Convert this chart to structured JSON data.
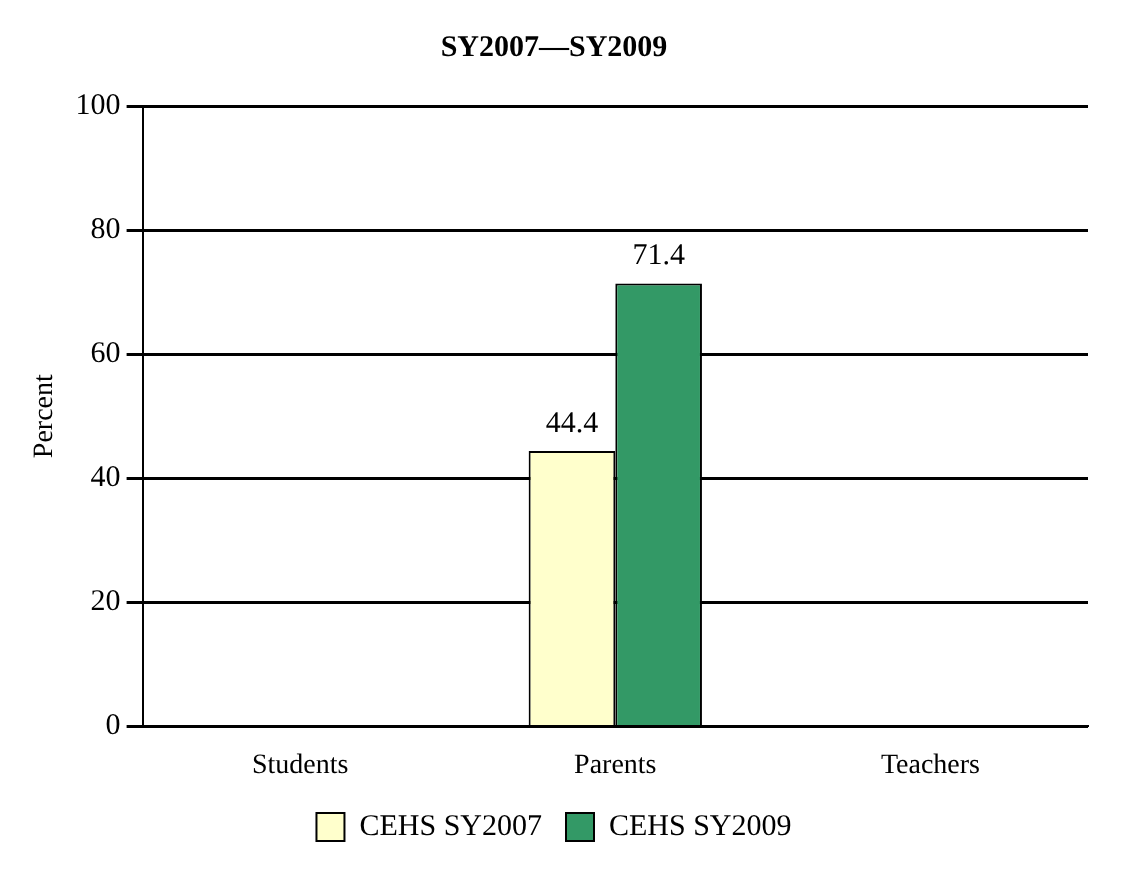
{
  "chart_data": {
    "type": "bar",
    "title": "SY2007—SY2009",
    "ylabel": "Percent",
    "categories": [
      "Students",
      "Parents",
      "Teachers"
    ],
    "series": [
      {
        "name": "CEHS SY2007",
        "color": "#ffffcc",
        "values": [
          null,
          44.4,
          null
        ]
      },
      {
        "name": "CEHS SY2009",
        "color": "#339966",
        "values": [
          null,
          71.4,
          null
        ]
      }
    ],
    "ylim": [
      0,
      100
    ],
    "yticks": [
      0,
      20,
      40,
      60,
      80,
      100
    ],
    "grid": "y",
    "legend": "bottom",
    "data_labels": true
  }
}
